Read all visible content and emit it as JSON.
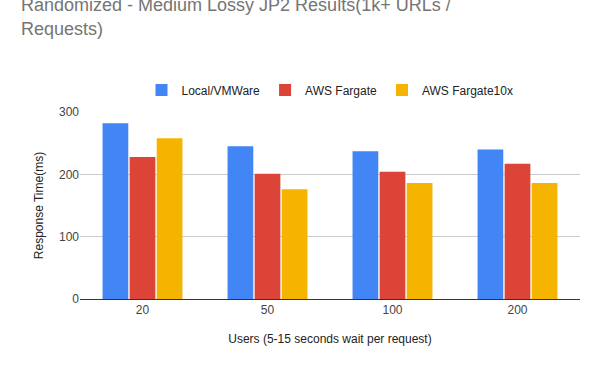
{
  "chart_data": {
    "type": "bar",
    "title": "Randomized - Medium Lossy JP2 Results(1k+ URLs / Requests)",
    "x_label": "Users (5-15 seconds wait per request)",
    "y_label": "Response Time(ms)",
    "categories": [
      "20",
      "50",
      "100",
      "200"
    ],
    "series": [
      {
        "name": "Local/VMWare",
        "color": "#4285f4",
        "values": [
          282,
          245,
          237,
          240
        ]
      },
      {
        "name": "AWS Fargate",
        "color": "#db4437",
        "values": [
          228,
          201,
          204,
          217
        ]
      },
      {
        "name": "AWS Fargate10x",
        "color": "#f4b400",
        "values": [
          258,
          176,
          186,
          186
        ]
      }
    ],
    "ylim": [
      0,
      300
    ],
    "yticks": [
      0,
      100,
      200,
      300
    ],
    "grid": true,
    "legend": "top"
  }
}
